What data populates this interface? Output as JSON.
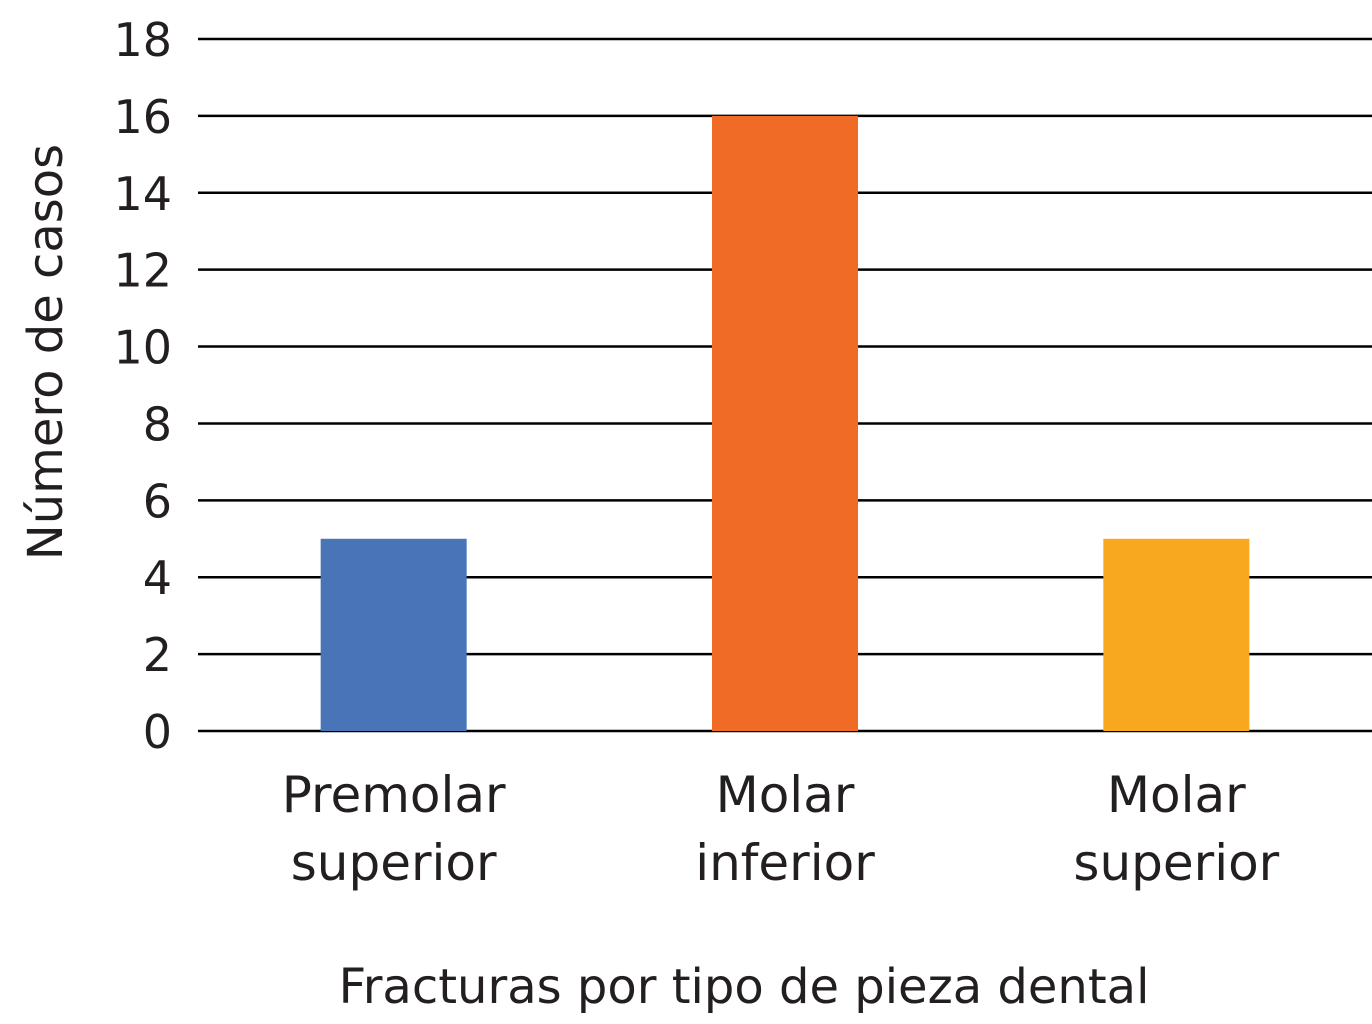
{
  "chart_data": {
    "type": "bar",
    "categories": [
      [
        "Premolar",
        "superior"
      ],
      [
        "Molar",
        "inferior"
      ],
      [
        "Molar",
        "superior"
      ]
    ],
    "values": [
      5,
      16,
      5
    ],
    "colors": [
      "#4a74b8",
      "#f06b26",
      "#f8a81e"
    ],
    "xlabel": "Fracturas por tipo de pieza dental",
    "ylabel": "Número de casos",
    "ylim": [
      0,
      18
    ],
    "yticks": [
      0,
      2,
      4,
      6,
      8,
      10,
      12,
      14,
      16,
      18
    ],
    "grid": true,
    "legend": "none"
  }
}
